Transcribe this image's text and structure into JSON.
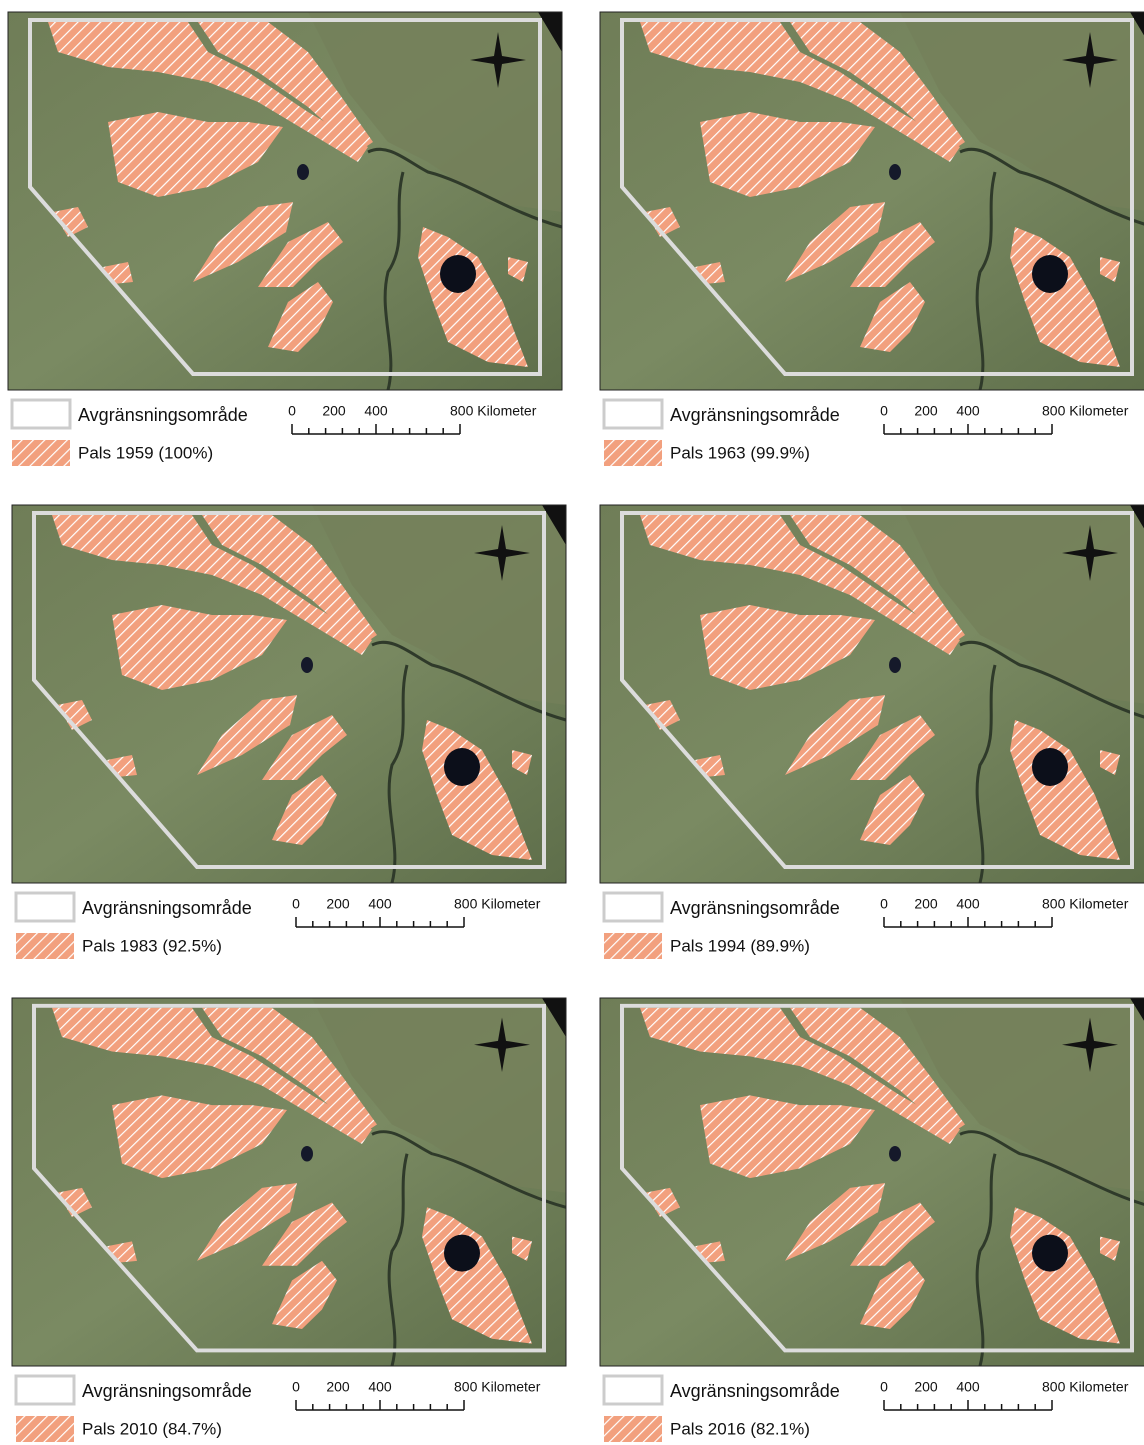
{
  "panels": [
    {
      "legend": {
        "boundary": "Avgränsningsområde",
        "pals": "Pals 1959 (100%)"
      },
      "scale_bar": {
        "labels": [
          "0",
          "200",
          "400",
          "800 Kilometer"
        ]
      }
    },
    {
      "legend": {
        "boundary": "Avgränsningsområde",
        "pals": "Pals 1963 (99.9%)"
      },
      "scale_bar": {
        "labels": [
          "0",
          "200",
          "400",
          "800 Kilometer"
        ]
      }
    },
    {
      "legend": {
        "boundary": "Avgränsningsområde",
        "pals": "Pals 1983 (92.5%)"
      },
      "scale_bar": {
        "labels": [
          "0",
          "200",
          "400",
          "800 Kilometer"
        ]
      }
    },
    {
      "legend": {
        "boundary": "Avgränsningsområde",
        "pals": "Pals 1994 (89.9%)"
      },
      "scale_bar": {
        "labels": [
          "0",
          "200",
          "400",
          "800 Kilometer"
        ]
      }
    },
    {
      "legend": {
        "boundary": "Avgränsningsområde",
        "pals": "Pals 2010 (84.7%)"
      },
      "scale_bar": {
        "labels": [
          "0",
          "200",
          "400",
          "800 Kilometer"
        ]
      }
    },
    {
      "legend": {
        "boundary": "Avgränsningsområde",
        "pals": "Pals 2016 (82.1%)"
      },
      "scale_bar": {
        "labels": [
          "0",
          "200",
          "400",
          "800 Kilometer"
        ]
      }
    }
  ]
}
